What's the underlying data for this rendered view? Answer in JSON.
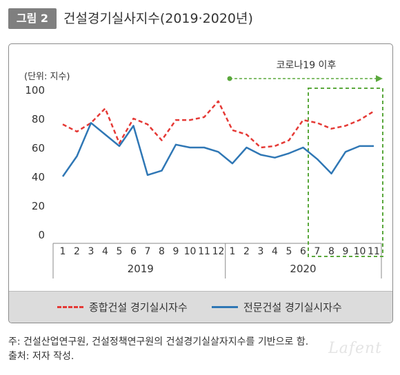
{
  "figure": {
    "badge": "그림 2",
    "title": "건설경기실사지수(2019·2020년)"
  },
  "colors": {
    "badge_bg": "#7f7f7f",
    "series1": "#e53935",
    "series2": "#2f77b5",
    "covid_marker": "#5aa83c",
    "legend_bg": "#dcdcdc"
  },
  "chart_data": {
    "type": "line",
    "unit_label": "(단위: 지수)",
    "yticks": [
      "100",
      "80",
      "60",
      "40",
      "20",
      "0"
    ],
    "ylim": [
      0,
      100
    ],
    "categories": [
      "1",
      "2",
      "3",
      "4",
      "5",
      "6",
      "7",
      "8",
      "9",
      "10",
      "11",
      "12",
      "1",
      "2",
      "3",
      "4",
      "5",
      "6",
      "7",
      "8",
      "9",
      "10",
      "11"
    ],
    "years": [
      {
        "label": "2019",
        "start": 0,
        "end": 11
      },
      {
        "label": "2020",
        "start": 12,
        "end": 22
      }
    ],
    "series": [
      {
        "name": "종합건설 경기실시자수",
        "style": "dashed",
        "values": [
          76,
          71,
          77,
          87,
          63,
          80,
          76,
          65,
          79,
          79,
          81,
          92,
          72,
          69,
          60,
          61,
          65,
          79,
          77,
          73,
          75,
          79,
          85
        ]
      },
      {
        "name": "전문건설 경기실시자수",
        "style": "solid",
        "values": [
          40,
          54,
          77,
          69,
          61,
          75,
          41,
          44,
          62,
          60,
          60,
          57,
          49,
          60,
          55,
          53,
          56,
          60,
          52,
          42,
          57,
          61,
          61
        ]
      }
    ],
    "annotation": {
      "label": "코로나19 이후",
      "start_index": 18,
      "end_index": 22
    },
    "grid": false,
    "legend": "bottom"
  },
  "notes": [
    "주: 건설산업연구원, 건설정책연구원의 건설경기실살자지수를 기반으로 함.",
    "출처: 저자 작성."
  ],
  "watermark": "Lafent"
}
